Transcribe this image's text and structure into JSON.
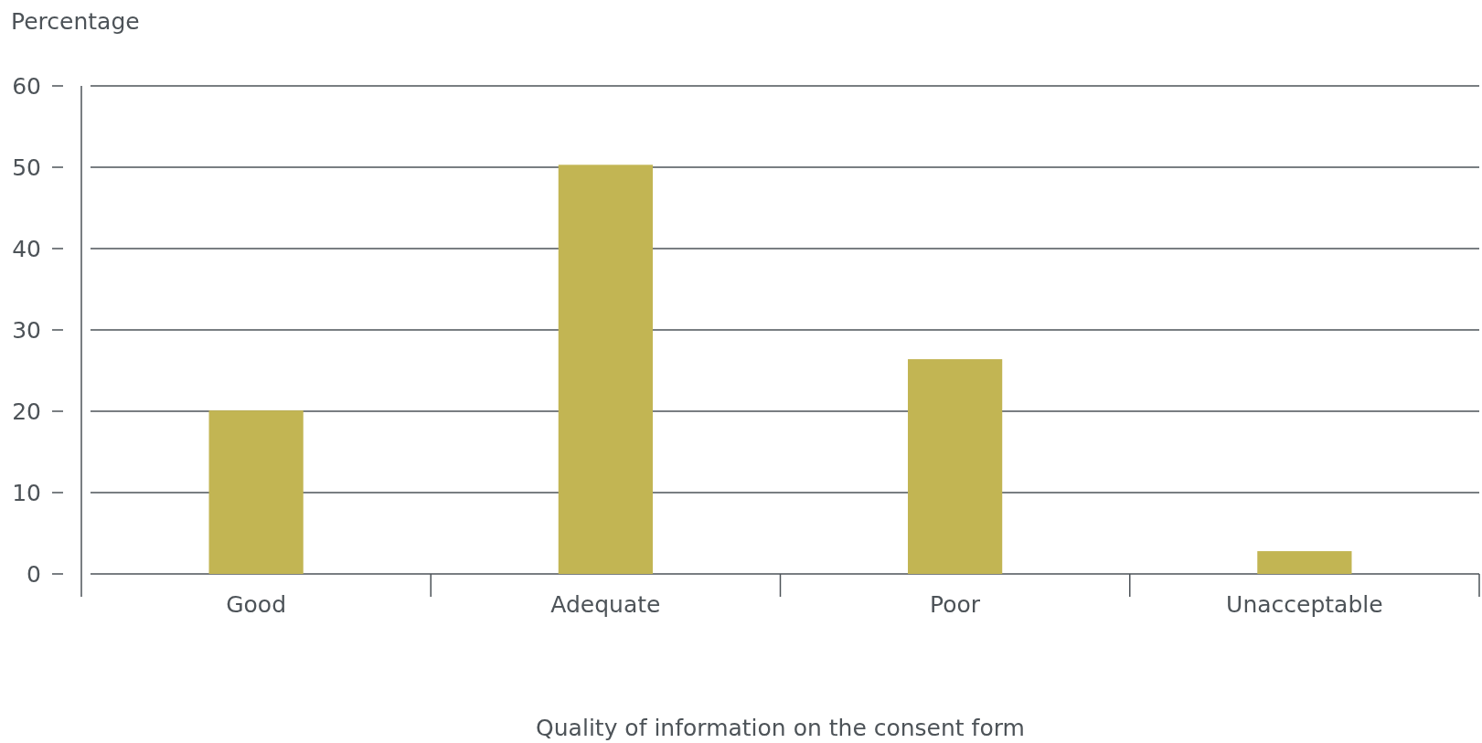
{
  "chart_data": {
    "type": "bar",
    "ylabel": "Percentage",
    "xlabel": "Quality of information on the consent form",
    "categories": [
      "Good",
      "Adequate",
      "Poor",
      "Unacceptable"
    ],
    "values": [
      20.1,
      50.3,
      26.4,
      2.8
    ],
    "color": "#c2b553",
    "ylim": [
      0,
      60
    ],
    "yticks": [
      0,
      10,
      20,
      30,
      40,
      50,
      60
    ],
    "grid": "y"
  }
}
